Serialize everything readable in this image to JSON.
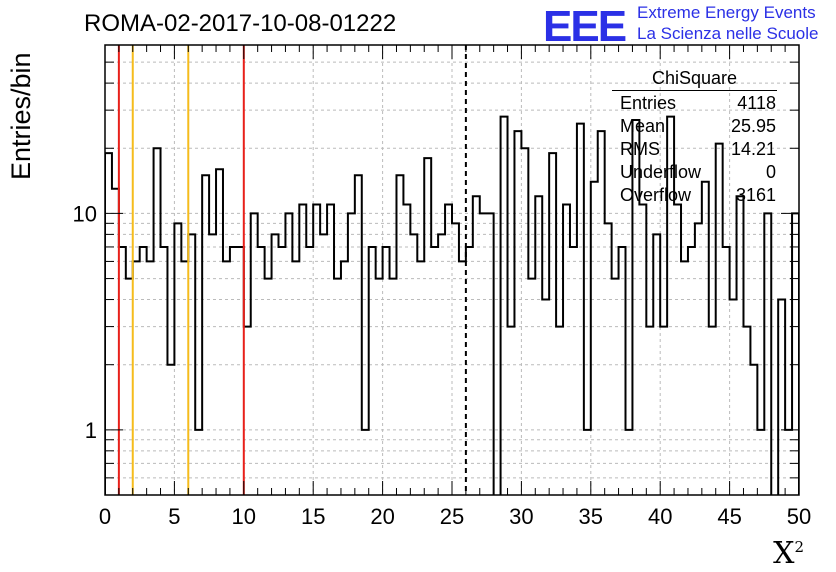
{
  "title": "ROMA-02-2017-10-08-01222",
  "ylabel": "Entries/bin",
  "xlabel": "X",
  "xlabel_sup": "2",
  "logo": {
    "mark": "EEE",
    "line1": "Extreme Energy Events",
    "line2": "La Scienza nelle Scuole",
    "color": "#2b30e6"
  },
  "stats": {
    "title": "ChiSquare",
    "rows": [
      {
        "label": "Entries",
        "value": "4118"
      },
      {
        "label": "Mean",
        "value": "25.95"
      },
      {
        "label": "RMS",
        "value": "14.21"
      },
      {
        "label": "Underflow",
        "value": "0"
      },
      {
        "label": "Overflow",
        "value": "3161"
      }
    ]
  },
  "chart_data": {
    "type": "histogram",
    "scale_y": "log",
    "xlim": [
      0,
      50
    ],
    "ylim": [
      0.5,
      60
    ],
    "bin_width": 0.5,
    "xticks": [
      0,
      5,
      10,
      15,
      20,
      25,
      30,
      35,
      40,
      45,
      50
    ],
    "xtick_labels": [
      "0",
      "5",
      "10",
      "15",
      "20",
      "25",
      "30",
      "35",
      "40",
      "45",
      "50"
    ],
    "yticks": [
      1,
      10
    ],
    "ytick_labels": [
      "1",
      "10"
    ],
    "grid": true,
    "values": [
      19,
      13,
      7,
      5,
      6,
      7,
      6,
      20,
      7,
      2,
      9,
      6,
      8,
      1,
      15,
      8,
      16,
      6,
      7,
      7,
      3,
      10,
      7,
      5,
      8,
      7,
      10,
      6,
      11,
      7,
      11,
      8,
      11,
      5,
      6,
      10,
      15,
      1,
      7,
      5,
      7,
      5,
      15,
      11,
      8,
      6,
      18,
      7,
      8,
      11,
      9,
      6,
      7,
      12,
      10,
      10,
      0.4,
      28,
      3,
      24,
      20,
      5,
      12,
      4,
      19,
      3,
      11,
      7,
      26,
      1,
      14,
      24,
      9,
      5,
      7,
      1,
      27,
      11,
      3,
      8,
      3,
      28,
      11,
      6,
      7,
      9,
      14,
      3,
      21,
      7,
      4,
      12,
      3,
      2,
      1,
      10,
      0.4,
      4,
      1,
      10
    ],
    "vlines": [
      {
        "x": 1,
        "color": "#e8201a",
        "style": "solid"
      },
      {
        "x": 2,
        "color": "#f5bc1c",
        "style": "solid"
      },
      {
        "x": 6,
        "color": "#f5bc1c",
        "style": "solid"
      },
      {
        "x": 10,
        "color": "#e8201a",
        "style": "solid"
      },
      {
        "x": 26,
        "color": "#000000",
        "style": "dashed"
      }
    ]
  }
}
